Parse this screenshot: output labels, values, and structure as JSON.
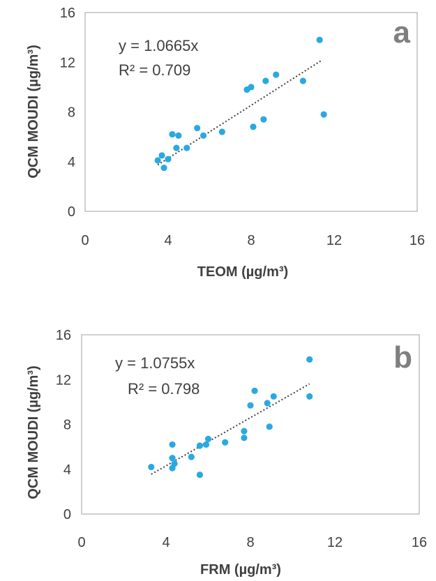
{
  "chart_data": [
    {
      "type": "scatter",
      "panel_label": "a",
      "xlabel": "TEOM (µg/m³)",
      "ylabel": "QCM MOUDI (µg/m³)",
      "xlim": [
        0,
        16
      ],
      "ylim": [
        0,
        16
      ],
      "xticks": [
        "0",
        "4",
        "8",
        "12",
        "16"
      ],
      "yticks": [
        "0",
        "4",
        "8",
        "12",
        "16"
      ],
      "equation": "y = 1.0665x",
      "r_squared": "R² = 0.709",
      "trendline": {
        "slope": 1.0665,
        "intercept": 0,
        "x_range": [
          3.5,
          11.4
        ],
        "style": "dotted"
      },
      "grid": false,
      "legend": "none",
      "point_color": "#2aa9e0",
      "points": [
        [
          3.5,
          4.1
        ],
        [
          3.7,
          4.5
        ],
        [
          3.8,
          3.5
        ],
        [
          4.0,
          4.2
        ],
        [
          4.2,
          6.2
        ],
        [
          4.4,
          5.1
        ],
        [
          4.5,
          6.1
        ],
        [
          4.9,
          5.1
        ],
        [
          5.4,
          6.7
        ],
        [
          5.7,
          6.1
        ],
        [
          6.6,
          6.4
        ],
        [
          7.8,
          9.8
        ],
        [
          8.0,
          10.0
        ],
        [
          8.1,
          6.8
        ],
        [
          8.6,
          7.4
        ],
        [
          8.7,
          10.5
        ],
        [
          9.2,
          11.0
        ],
        [
          10.5,
          10.5
        ],
        [
          11.3,
          13.8
        ],
        [
          11.5,
          7.8
        ]
      ]
    },
    {
      "type": "scatter",
      "panel_label": "b",
      "xlabel": "FRM (µg/m³)",
      "ylabel": "QCM MOUDI (µg/m³)",
      "xlim": [
        0,
        16
      ],
      "ylim": [
        0,
        16
      ],
      "xticks": [
        "0",
        "4",
        "8",
        "12",
        "16"
      ],
      "yticks": [
        "0",
        "4",
        "8",
        "12",
        "16"
      ],
      "equation": "y = 1.0755x",
      "r_squared": "R² = 0.798",
      "trendline": {
        "slope": 1.0755,
        "intercept": 0,
        "x_range": [
          3.3,
          10.8
        ],
        "style": "dotted"
      },
      "grid": false,
      "legend": "none",
      "point_color": "#2aa9e0",
      "points": [
        [
          3.3,
          4.2
        ],
        [
          4.3,
          6.2
        ],
        [
          4.3,
          4.1
        ],
        [
          4.3,
          5.0
        ],
        [
          4.4,
          4.5
        ],
        [
          5.2,
          5.1
        ],
        [
          5.6,
          3.5
        ],
        [
          5.6,
          6.1
        ],
        [
          5.9,
          6.2
        ],
        [
          6.0,
          6.7
        ],
        [
          6.8,
          6.4
        ],
        [
          7.7,
          7.4
        ],
        [
          7.7,
          6.8
        ],
        [
          8.0,
          9.7
        ],
        [
          8.2,
          11.0
        ],
        [
          8.8,
          9.9
        ],
        [
          8.9,
          7.8
        ],
        [
          9.1,
          10.5
        ],
        [
          10.8,
          13.8
        ],
        [
          10.8,
          10.5
        ]
      ]
    }
  ]
}
